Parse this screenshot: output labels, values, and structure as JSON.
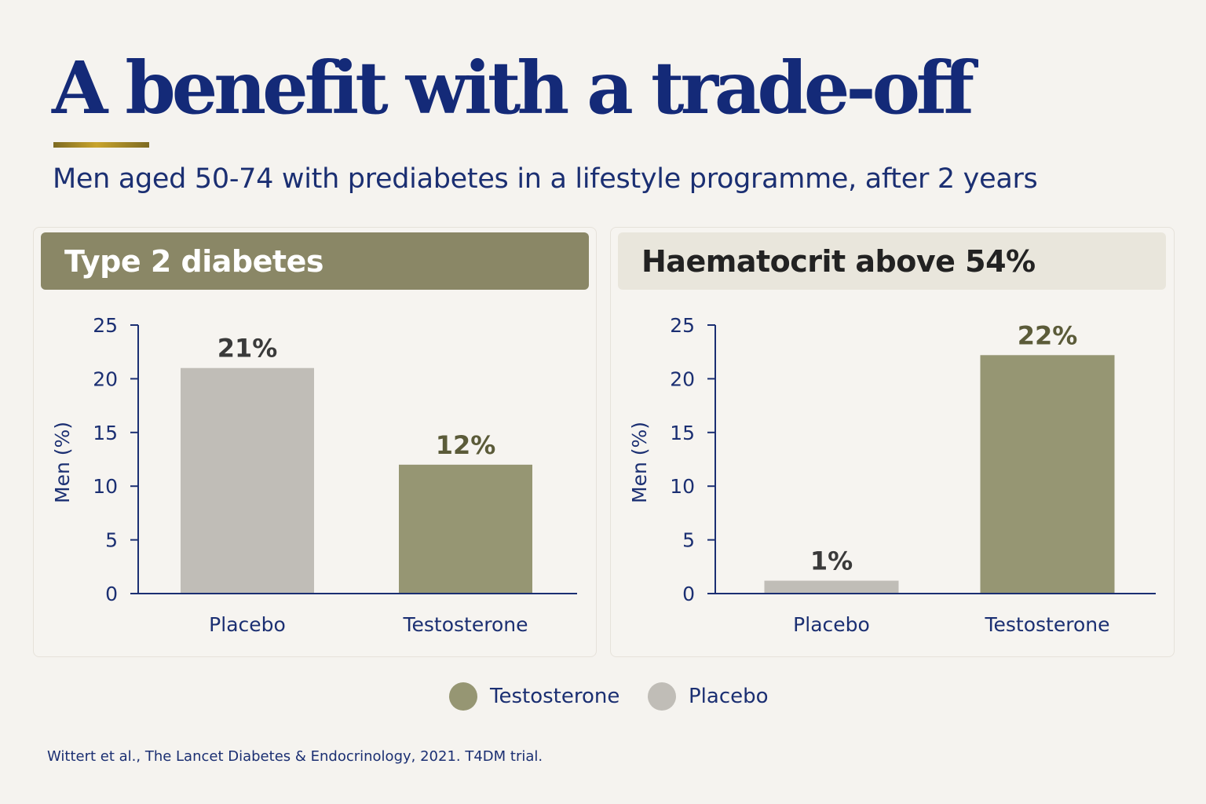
{
  "title": "A benefit with a trade-off",
  "subtitle": "Men aged 50-74 with prediabetes in a lifestyle programme, after 2 years",
  "colors": {
    "testosterone": "#969673",
    "placebo": "#c0bdb7",
    "header_testosterone": "#8a8766",
    "header_light": "#e9e6dc",
    "navy": "#1b2f72",
    "accent_gold": "#c9a42c"
  },
  "chart_data": [
    {
      "type": "bar",
      "title": "Type 2 diabetes",
      "categories": [
        "Placebo",
        "Testosterone"
      ],
      "values": [
        21,
        12
      ],
      "value_labels": [
        "21%",
        "12%"
      ],
      "ylabel": "Men (%)",
      "ylim": [
        0,
        25
      ],
      "yticks": [
        0,
        5,
        10,
        15,
        20,
        25
      ],
      "grid": false
    },
    {
      "type": "bar",
      "title": "Haematocrit above 54%",
      "categories": [
        "Placebo",
        "Testosterone"
      ],
      "values": [
        1.2,
        22.2
      ],
      "value_labels": [
        "1%",
        "22%"
      ],
      "ylabel": "Men (%)",
      "ylim": [
        0,
        25
      ],
      "yticks": [
        0,
        5,
        10,
        15,
        20,
        25
      ],
      "grid": false
    }
  ],
  "legend": [
    {
      "label": "Testosterone",
      "color": "#969673"
    },
    {
      "label": "Placebo",
      "color": "#c0bdb7"
    }
  ],
  "legend_placement": "bottom-center",
  "source": "Wittert et al., The Lancet Diabetes & Endocrinology, 2021. T4DM trial."
}
